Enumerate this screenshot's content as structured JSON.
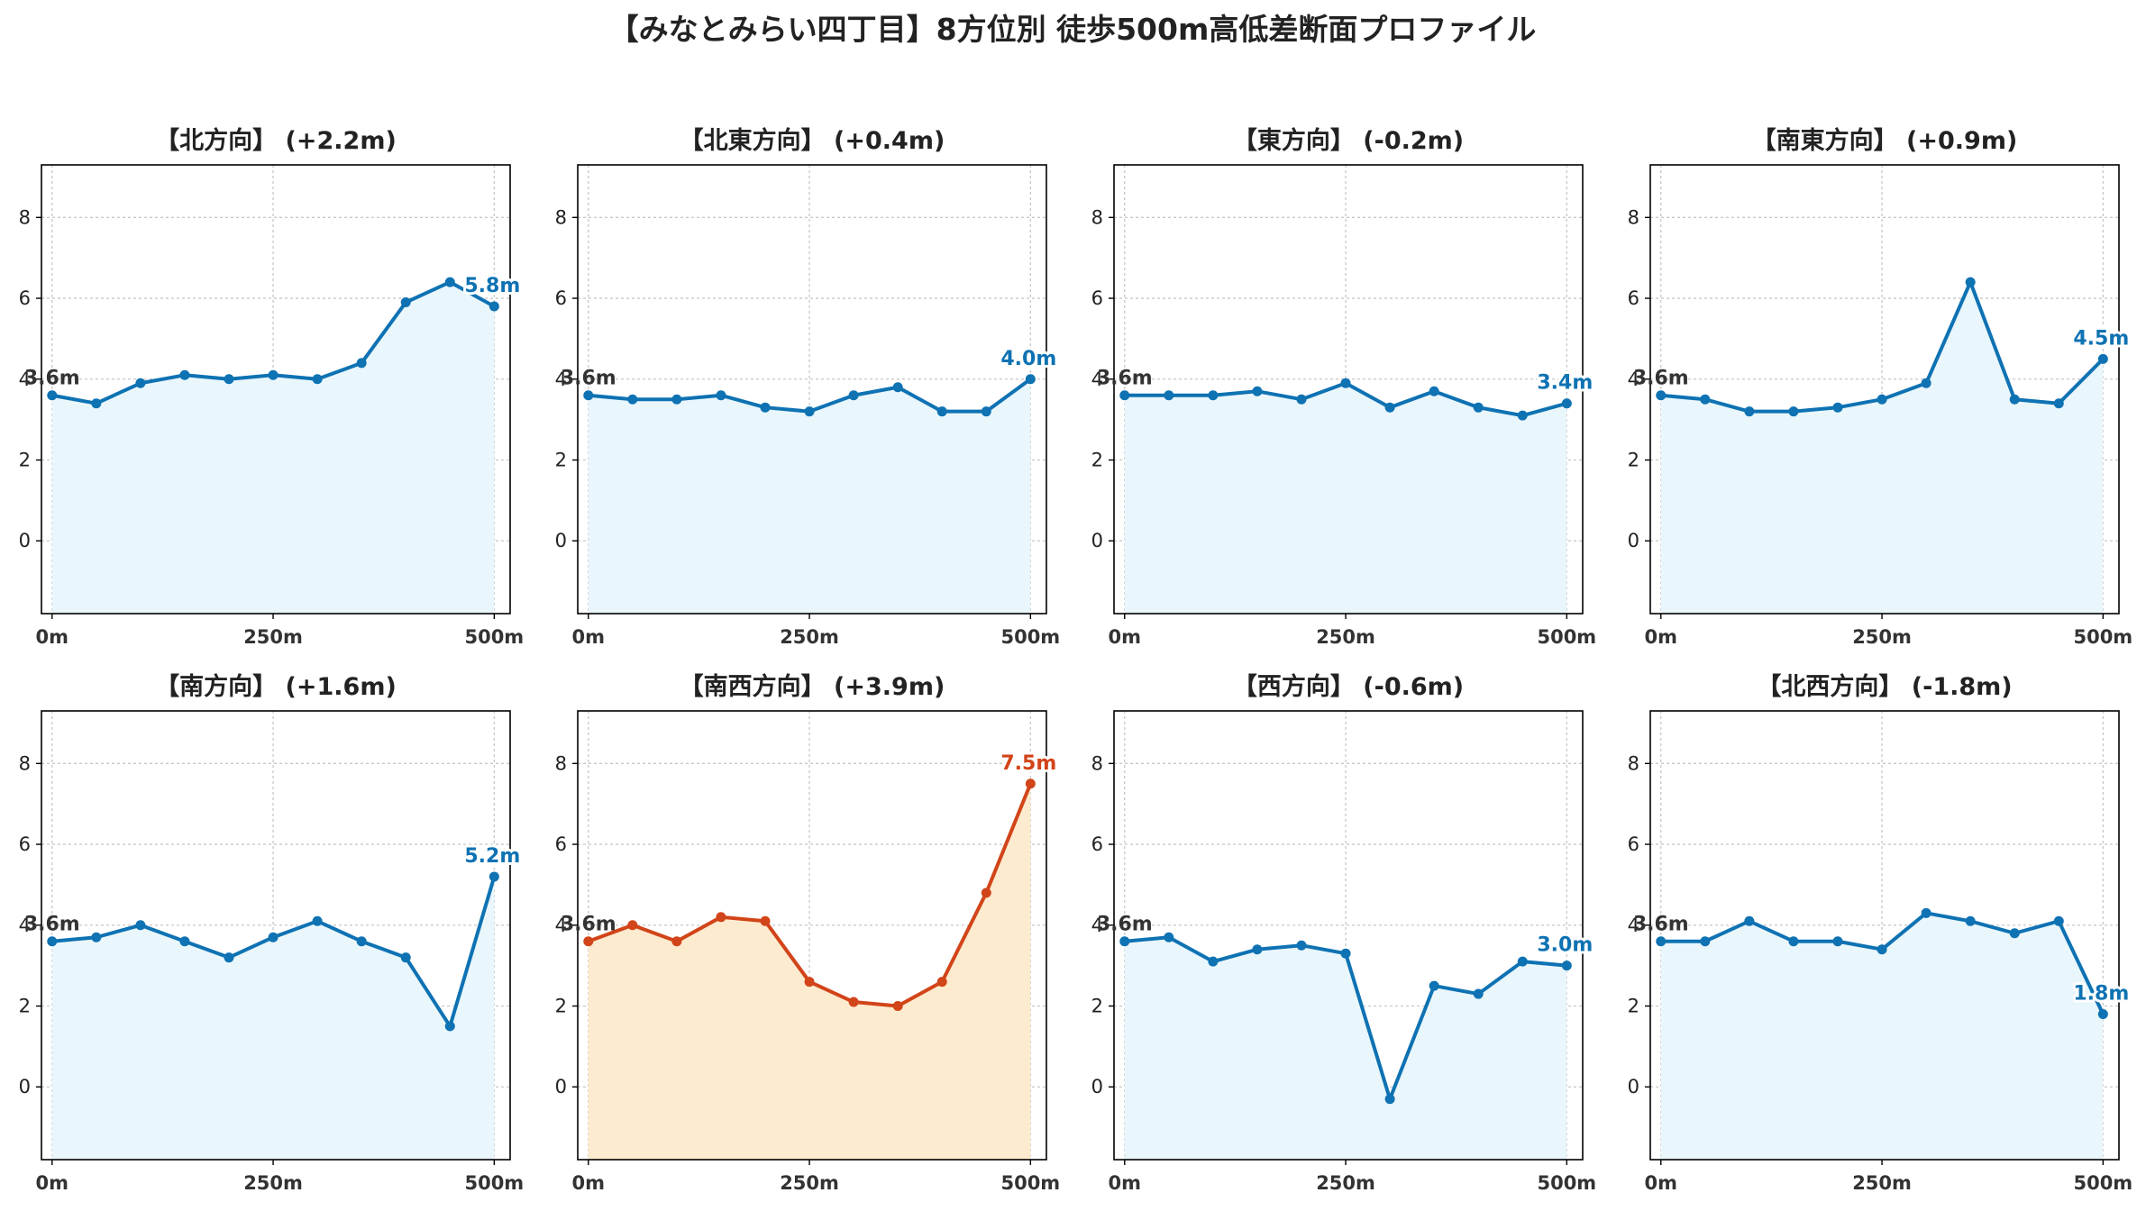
{
  "title": "【みなとみらい四丁目】8方位別 徒歩500m高低差断面プロファイル",
  "colors": {
    "normal_line": "#0e72b3",
    "normal_fill": "#e9f6fb",
    "highlight_line": "#d24419",
    "highlight_fill": "#fdebcf"
  },
  "chart_data": [
    {
      "type": "area",
      "title": "【北方向】 (+2.2m)",
      "highlight": false,
      "x": [
        0,
        50,
        100,
        150,
        200,
        250,
        300,
        350,
        400,
        450,
        500
      ],
      "values": [
        3.6,
        3.4,
        3.9,
        4.1,
        4.0,
        4.1,
        4.0,
        4.4,
        5.9,
        6.4,
        5.8
      ],
      "start_label": "3.6m",
      "end_label": "5.8m",
      "xticks": [
        "0m",
        "250m",
        "500m"
      ],
      "xtick_values": [
        0,
        250,
        500
      ],
      "yticks": [
        "0",
        "2",
        "4",
        "6",
        "8"
      ],
      "ytick_values": [
        0,
        2,
        4,
        6,
        8
      ],
      "ylim": [
        -1.8,
        9.3
      ],
      "xlim": [
        -12,
        518
      ],
      "grid": true
    },
    {
      "type": "area",
      "title": "【北東方向】 (+0.4m)",
      "highlight": false,
      "x": [
        0,
        50,
        100,
        150,
        200,
        250,
        300,
        350,
        400,
        450,
        500
      ],
      "values": [
        3.6,
        3.5,
        3.5,
        3.6,
        3.3,
        3.2,
        3.6,
        3.8,
        3.2,
        3.2,
        4.0
      ],
      "start_label": "3.6m",
      "end_label": "4.0m",
      "xticks": [
        "0m",
        "250m",
        "500m"
      ],
      "xtick_values": [
        0,
        250,
        500
      ],
      "yticks": [
        "0",
        "2",
        "4",
        "6",
        "8"
      ],
      "ytick_values": [
        0,
        2,
        4,
        6,
        8
      ],
      "ylim": [
        -1.8,
        9.3
      ],
      "xlim": [
        -12,
        518
      ],
      "grid": true
    },
    {
      "type": "area",
      "title": "【東方向】 (-0.2m)",
      "highlight": false,
      "x": [
        0,
        50,
        100,
        150,
        200,
        250,
        300,
        350,
        400,
        450,
        500
      ],
      "values": [
        3.6,
        3.6,
        3.6,
        3.7,
        3.5,
        3.9,
        3.3,
        3.7,
        3.3,
        3.1,
        3.4
      ],
      "start_label": "3.6m",
      "end_label": "3.4m",
      "xticks": [
        "0m",
        "250m",
        "500m"
      ],
      "xtick_values": [
        0,
        250,
        500
      ],
      "yticks": [
        "0",
        "2",
        "4",
        "6",
        "8"
      ],
      "ytick_values": [
        0,
        2,
        4,
        6,
        8
      ],
      "ylim": [
        -1.8,
        9.3
      ],
      "xlim": [
        -12,
        518
      ],
      "grid": true
    },
    {
      "type": "area",
      "title": "【南東方向】 (+0.9m)",
      "highlight": false,
      "x": [
        0,
        50,
        100,
        150,
        200,
        250,
        300,
        350,
        400,
        450,
        500
      ],
      "values": [
        3.6,
        3.5,
        3.2,
        3.2,
        3.3,
        3.5,
        3.9,
        6.4,
        3.5,
        3.4,
        4.5
      ],
      "start_label": "3.6m",
      "end_label": "4.5m",
      "xticks": [
        "0m",
        "250m",
        "500m"
      ],
      "xtick_values": [
        0,
        250,
        500
      ],
      "yticks": [
        "0",
        "2",
        "4",
        "6",
        "8"
      ],
      "ytick_values": [
        0,
        2,
        4,
        6,
        8
      ],
      "ylim": [
        -1.8,
        9.3
      ],
      "xlim": [
        -12,
        518
      ],
      "grid": true
    },
    {
      "type": "area",
      "title": "【南方向】 (+1.6m)",
      "highlight": false,
      "x": [
        0,
        50,
        100,
        150,
        200,
        250,
        300,
        350,
        400,
        450,
        500
      ],
      "values": [
        3.6,
        3.7,
        4.0,
        3.6,
        3.2,
        3.7,
        4.1,
        3.6,
        3.2,
        1.5,
        5.2
      ],
      "start_label": "3.6m",
      "end_label": "5.2m",
      "xticks": [
        "0m",
        "250m",
        "500m"
      ],
      "xtick_values": [
        0,
        250,
        500
      ],
      "yticks": [
        "0",
        "2",
        "4",
        "6",
        "8"
      ],
      "ytick_values": [
        0,
        2,
        4,
        6,
        8
      ],
      "ylim": [
        -1.8,
        9.3
      ],
      "xlim": [
        -12,
        518
      ],
      "grid": true
    },
    {
      "type": "area",
      "title": "【南西方向】 (+3.9m)",
      "highlight": true,
      "x": [
        0,
        50,
        100,
        150,
        200,
        250,
        300,
        350,
        400,
        450,
        500
      ],
      "values": [
        3.6,
        4.0,
        3.6,
        4.2,
        4.1,
        2.6,
        2.1,
        2.0,
        2.6,
        4.8,
        7.5
      ],
      "start_label": "3.6m",
      "end_label": "7.5m",
      "xticks": [
        "0m",
        "250m",
        "500m"
      ],
      "xtick_values": [
        0,
        250,
        500
      ],
      "yticks": [
        "0",
        "2",
        "4",
        "6",
        "8"
      ],
      "ytick_values": [
        0,
        2,
        4,
        6,
        8
      ],
      "ylim": [
        -1.8,
        9.3
      ],
      "xlim": [
        -12,
        518
      ],
      "grid": true
    },
    {
      "type": "area",
      "title": "【西方向】 (-0.6m)",
      "highlight": false,
      "x": [
        0,
        50,
        100,
        150,
        200,
        250,
        300,
        350,
        400,
        450,
        500
      ],
      "values": [
        3.6,
        3.7,
        3.1,
        3.4,
        3.5,
        3.3,
        -0.3,
        2.5,
        2.3,
        3.1,
        3.0
      ],
      "start_label": "3.6m",
      "end_label": "3.0m",
      "xticks": [
        "0m",
        "250m",
        "500m"
      ],
      "xtick_values": [
        0,
        250,
        500
      ],
      "yticks": [
        "0",
        "2",
        "4",
        "6",
        "8"
      ],
      "ytick_values": [
        0,
        2,
        4,
        6,
        8
      ],
      "ylim": [
        -1.8,
        9.3
      ],
      "xlim": [
        -12,
        518
      ],
      "grid": true
    },
    {
      "type": "area",
      "title": "【北西方向】 (-1.8m)",
      "highlight": false,
      "x": [
        0,
        50,
        100,
        150,
        200,
        250,
        300,
        350,
        400,
        450,
        500
      ],
      "values": [
        3.6,
        3.6,
        4.1,
        3.6,
        3.6,
        3.4,
        4.3,
        4.1,
        3.8,
        4.1,
        1.8
      ],
      "start_label": "3.6m",
      "end_label": "1.8m",
      "xticks": [
        "0m",
        "250m",
        "500m"
      ],
      "xtick_values": [
        0,
        250,
        500
      ],
      "yticks": [
        "0",
        "2",
        "4",
        "6",
        "8"
      ],
      "ytick_values": [
        0,
        2,
        4,
        6,
        8
      ],
      "ylim": [
        -1.8,
        9.3
      ],
      "xlim": [
        -12,
        518
      ],
      "grid": true
    }
  ]
}
